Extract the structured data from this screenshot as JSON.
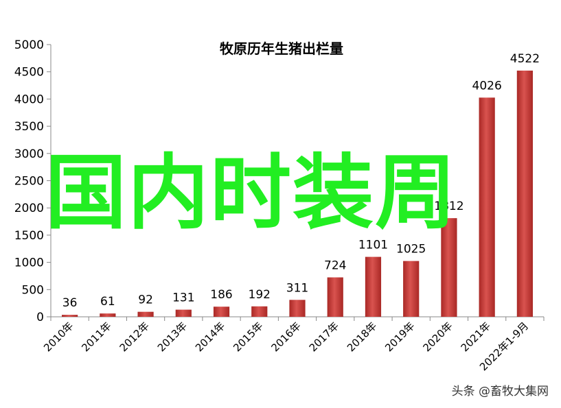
{
  "overlay_text": "国内时装周",
  "watermark": "头条 @畜牧大集网",
  "colors": {
    "bar": "#c0302c",
    "bar_highlight": "#d9534f",
    "axis": "#888888",
    "overlay": "#22ee22"
  },
  "chart_data": {
    "type": "bar",
    "title": "牧原历年生猪出栏量",
    "xlabel": "",
    "ylabel": "",
    "categories": [
      "2010年",
      "2011年",
      "2012年",
      "2013年",
      "2014年",
      "2015年",
      "2016年",
      "2017年",
      "2018年",
      "2019年",
      "2020年",
      "2021年",
      "2022年1-9月"
    ],
    "values": [
      36,
      61,
      92,
      131,
      186,
      192,
      311,
      724,
      1101,
      1025,
      1812,
      4026,
      4522
    ],
    "data_labels": [
      "36",
      "61",
      "92",
      "131",
      "186",
      "192",
      "311",
      "724",
      "1101",
      "1025",
      "1812",
      "4026",
      "4522"
    ],
    "ylim": [
      0,
      5000
    ],
    "yticks": [
      0,
      500,
      1000,
      1500,
      2000,
      2500,
      3000,
      3500,
      4000,
      4500,
      5000
    ],
    "grid": false,
    "legend": "none"
  }
}
